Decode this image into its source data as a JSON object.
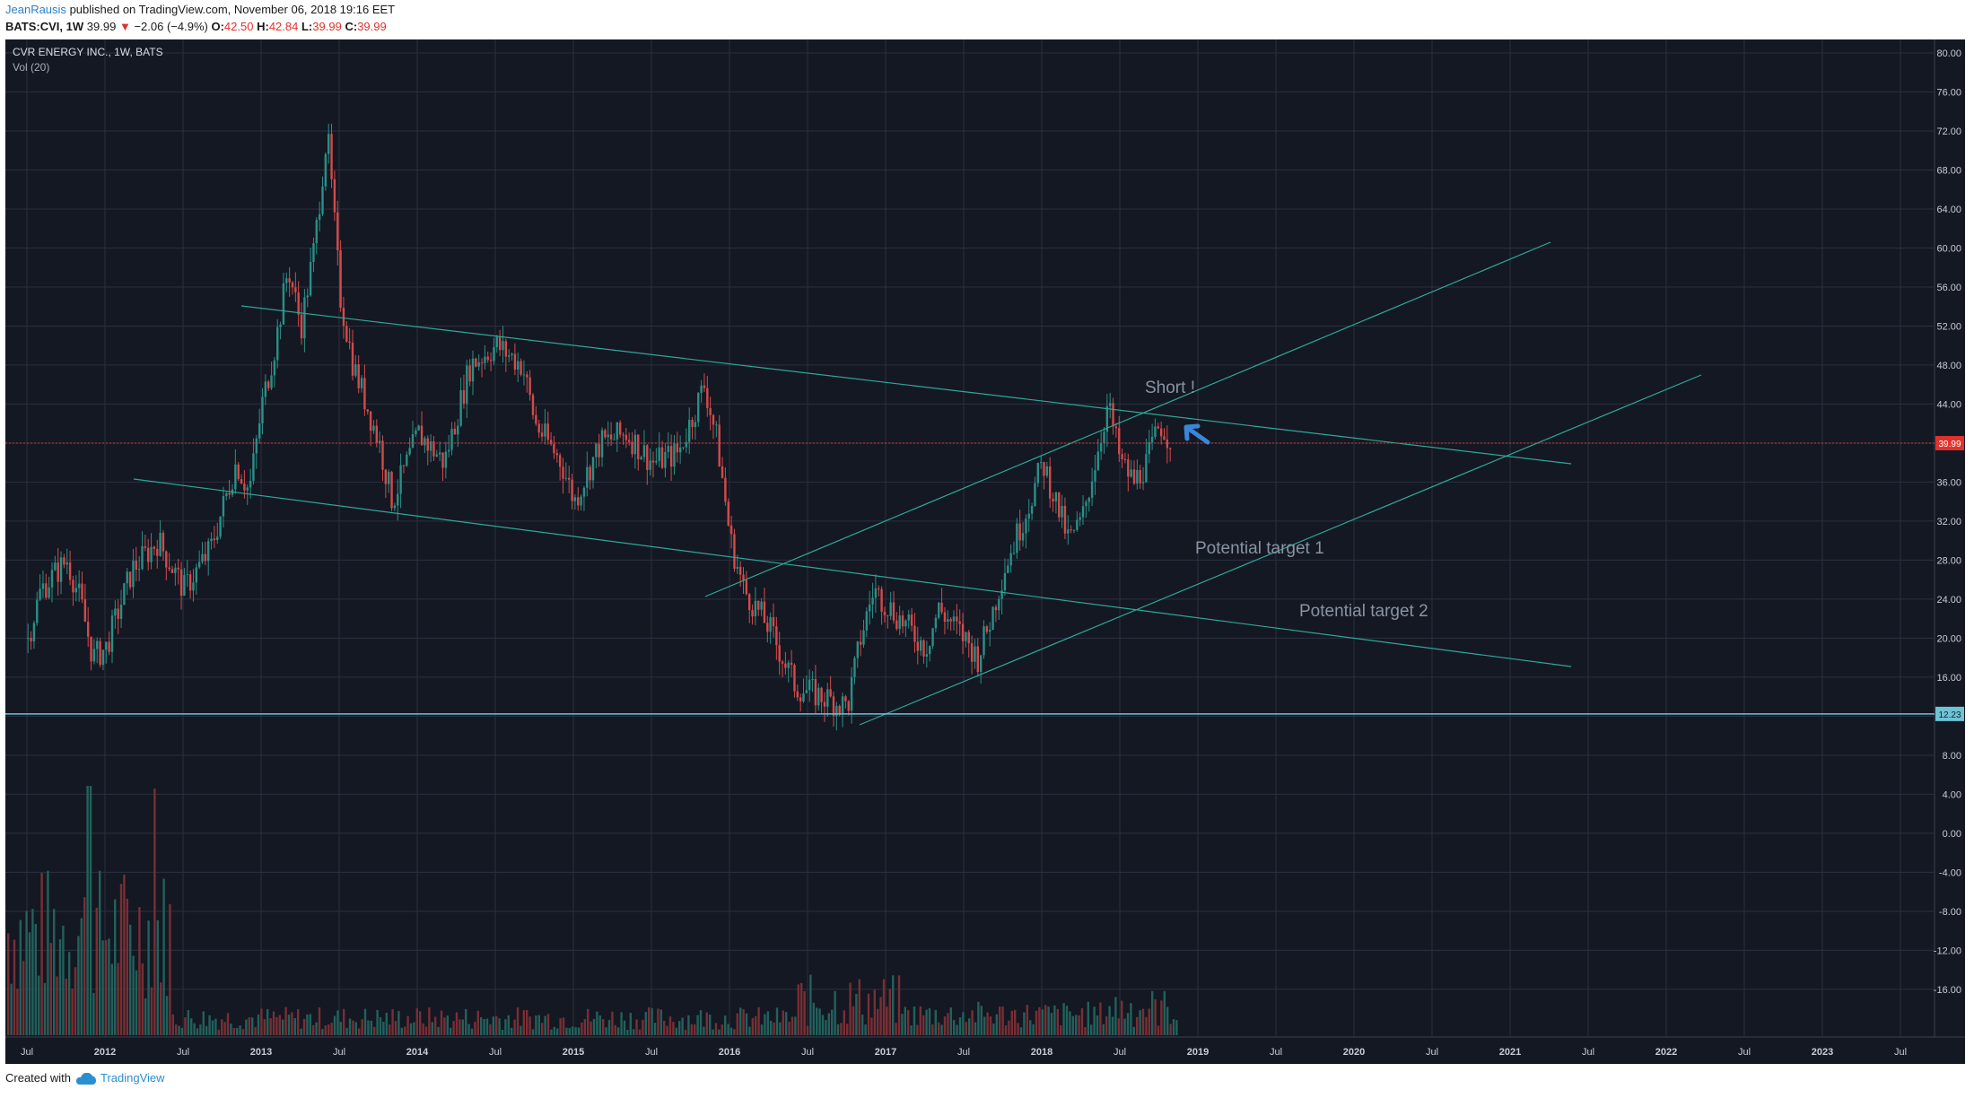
{
  "header": {
    "author": "JeanRausis",
    "published": "published on TradingView.com, November 06, 2018 19:16 EET",
    "symbol": "BATS:CVI, 1W",
    "last": "39.99",
    "change": "−2.06 (−4.9%)",
    "o_label": "O:",
    "o": "42.50",
    "h_label": "H:",
    "h": "42.84",
    "l_label": "L:",
    "l": "39.99",
    "c_label": "C:",
    "c": "39.99"
  },
  "chart_data": {
    "type": "candlestick",
    "title": "CVR ENERGY INC., 1W, BATS",
    "indicator": "Vol (20)",
    "ylim": [
      -20,
      80
    ],
    "y_ticks": [
      "80.00",
      "76.00",
      "72.00",
      "68.00",
      "64.00",
      "60.00",
      "56.00",
      "52.00",
      "48.00",
      "44.00",
      "40.00",
      "36.00",
      "32.00",
      "28.00",
      "24.00",
      "20.00",
      "16.00",
      "12.00",
      "8.00",
      "4.00",
      "0.00",
      "-4.00",
      "-8.00",
      "-12.00",
      "-16.00"
    ],
    "x_labels": [
      "Jul",
      "2012",
      "Jul",
      "2013",
      "Jul",
      "2014",
      "Jul",
      "2015",
      "Jul",
      "2016",
      "Jul",
      "2017",
      "Jul",
      "2018",
      "Jul",
      "2019",
      "Jul",
      "2020",
      "Jul",
      "2021",
      "Jul",
      "2022",
      "Jul",
      "2023",
      "Jul"
    ],
    "price_series": [
      {
        "date": "2011-07",
        "close": 20
      },
      {
        "date": "2011-08",
        "close": 25
      },
      {
        "date": "2011-10",
        "close": 28
      },
      {
        "date": "2011-11",
        "close": 24
      },
      {
        "date": "2011-12",
        "close": 18
      },
      {
        "date": "2012-01",
        "close": 19
      },
      {
        "date": "2012-03",
        "close": 27
      },
      {
        "date": "2012-05",
        "close": 30
      },
      {
        "date": "2012-07",
        "close": 25
      },
      {
        "date": "2012-09",
        "close": 29
      },
      {
        "date": "2012-11",
        "close": 38
      },
      {
        "date": "2012-12",
        "close": 35
      },
      {
        "date": "2013-01",
        "close": 44
      },
      {
        "date": "2013-02",
        "close": 50
      },
      {
        "date": "2013-03",
        "close": 58
      },
      {
        "date": "2013-04",
        "close": 52
      },
      {
        "date": "2013-05",
        "close": 60
      },
      {
        "date": "2013-06",
        "close": 72
      },
      {
        "date": "2013-07",
        "close": 55
      },
      {
        "date": "2013-08",
        "close": 48
      },
      {
        "date": "2013-10",
        "close": 40
      },
      {
        "date": "2013-11",
        "close": 34
      },
      {
        "date": "2014-01",
        "close": 41
      },
      {
        "date": "2014-03",
        "close": 38
      },
      {
        "date": "2014-05",
        "close": 48
      },
      {
        "date": "2014-07",
        "close": 50
      },
      {
        "date": "2014-09",
        "close": 48
      },
      {
        "date": "2014-10",
        "close": 42
      },
      {
        "date": "2014-12",
        "close": 38
      },
      {
        "date": "2015-01",
        "close": 34
      },
      {
        "date": "2015-03",
        "close": 40
      },
      {
        "date": "2015-05",
        "close": 41
      },
      {
        "date": "2015-07",
        "close": 38
      },
      {
        "date": "2015-09",
        "close": 39
      },
      {
        "date": "2015-11",
        "close": 46
      },
      {
        "date": "2015-12",
        "close": 40
      },
      {
        "date": "2016-01",
        "close": 30
      },
      {
        "date": "2016-02",
        "close": 25
      },
      {
        "date": "2016-04",
        "close": 21
      },
      {
        "date": "2016-06",
        "close": 15
      },
      {
        "date": "2016-08",
        "close": 14
      },
      {
        "date": "2016-10",
        "close": 13
      },
      {
        "date": "2016-11",
        "close": 20
      },
      {
        "date": "2016-12",
        "close": 25
      },
      {
        "date": "2017-02",
        "close": 22
      },
      {
        "date": "2017-04",
        "close": 19
      },
      {
        "date": "2017-05",
        "close": 23
      },
      {
        "date": "2017-07",
        "close": 20
      },
      {
        "date": "2017-08",
        "close": 18
      },
      {
        "date": "2017-09",
        "close": 22
      },
      {
        "date": "2017-10",
        "close": 27
      },
      {
        "date": "2017-12",
        "close": 34
      },
      {
        "date": "2018-01",
        "close": 38
      },
      {
        "date": "2018-02",
        "close": 34
      },
      {
        "date": "2018-03",
        "close": 30
      },
      {
        "date": "2018-04",
        "close": 32
      },
      {
        "date": "2018-05",
        "close": 38
      },
      {
        "date": "2018-06",
        "close": 44
      },
      {
        "date": "2018-07",
        "close": 38
      },
      {
        "date": "2018-08",
        "close": 36
      },
      {
        "date": "2018-09",
        "close": 38
      },
      {
        "date": "2018-10",
        "close": 42
      },
      {
        "date": "2018-11",
        "close": 39.99
      }
    ],
    "last_price": 39.99,
    "last_price_label": "39.99",
    "support_level": 12.23,
    "support_label": "12.23",
    "annotations": [
      {
        "text": "Short !"
      },
      {
        "text": "Potential target 1"
      },
      {
        "text": "Potential target 2"
      }
    ],
    "colors": {
      "up": "#2a8f87",
      "down": "#d44a4a",
      "trendline": "#2ea89a",
      "background": "#141822",
      "grid": "#2a3040",
      "last_price": "#e0322d",
      "support": "#6fc3d6",
      "arrow": "#3a86d9"
    }
  },
  "footer": {
    "created": "Created with",
    "brand": "TradingView"
  }
}
